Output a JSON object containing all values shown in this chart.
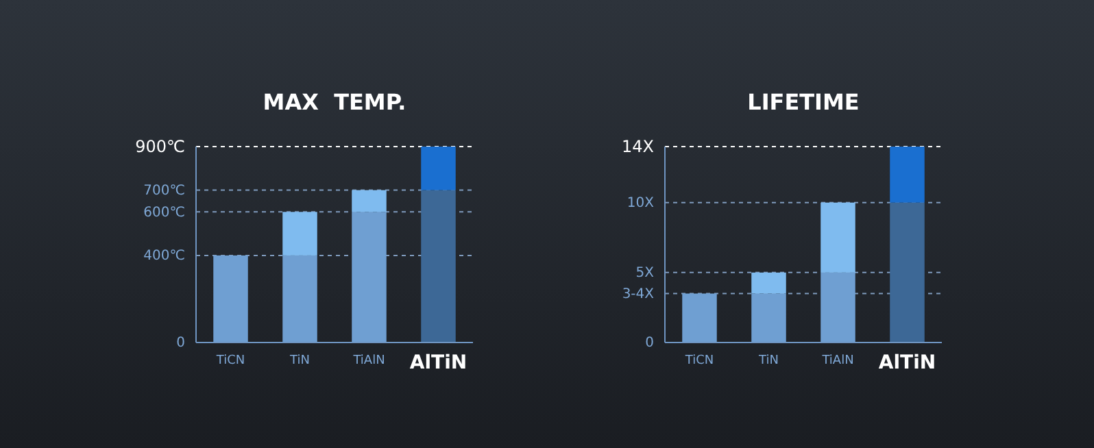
{
  "chart_data": [
    {
      "type": "bar",
      "title": "MAX  TEMP.",
      "categories": [
        "TiCN",
        "TiN",
        "TiAlN",
        "AlTiN"
      ],
      "stacked": true,
      "series": [
        {
          "colors": [
            "#6f9fd2",
            "#6f9fd2",
            "#6f9fd2",
            "#3d6896"
          ],
          "values": [
            400,
            400,
            600,
            700
          ]
        },
        {
          "colors": [
            "#6f9fd2",
            "#7fbbef",
            "#7fbbef",
            "#1a6fd0"
          ],
          "values": [
            0,
            200,
            100,
            200
          ]
        }
      ],
      "ylim": [
        0,
        900
      ],
      "yticks": [
        0,
        {
          "value": 400,
          "label": "400℃"
        },
        {
          "value": 600,
          "label": "600℃"
        },
        {
          "value": 700,
          "label": "700℃"
        },
        {
          "value": 900,
          "label": "900℃"
        }
      ],
      "grid": "y",
      "line_style": "dashed"
    },
    {
      "type": "bar",
      "title": "LIFETIME",
      "categories": [
        "TiCN",
        "TiN",
        "TiAlN",
        "AlTiN"
      ],
      "stacked": true,
      "series": [
        {
          "colors": [
            "#6f9fd2",
            "#6f9fd2",
            "#6f9fd2",
            "#3d6896"
          ],
          "values": [
            3.5,
            3.5,
            5,
            10
          ]
        },
        {
          "colors": [
            "#6f9fd2",
            "#7fbbef",
            "#7fbbef",
            "#1a6fd0"
          ],
          "values": [
            0,
            1.5,
            5,
            4
          ]
        }
      ],
      "ylim": [
        0,
        14
      ],
      "yticks": [
        0,
        {
          "value": 3.5,
          "label": "3-4X"
        },
        {
          "value": 5,
          "label": "5X"
        },
        {
          "value": 10,
          "label": "10X"
        },
        {
          "value": 14,
          "label": "14X"
        }
      ],
      "grid": "y",
      "line_style": "dashed"
    }
  ]
}
